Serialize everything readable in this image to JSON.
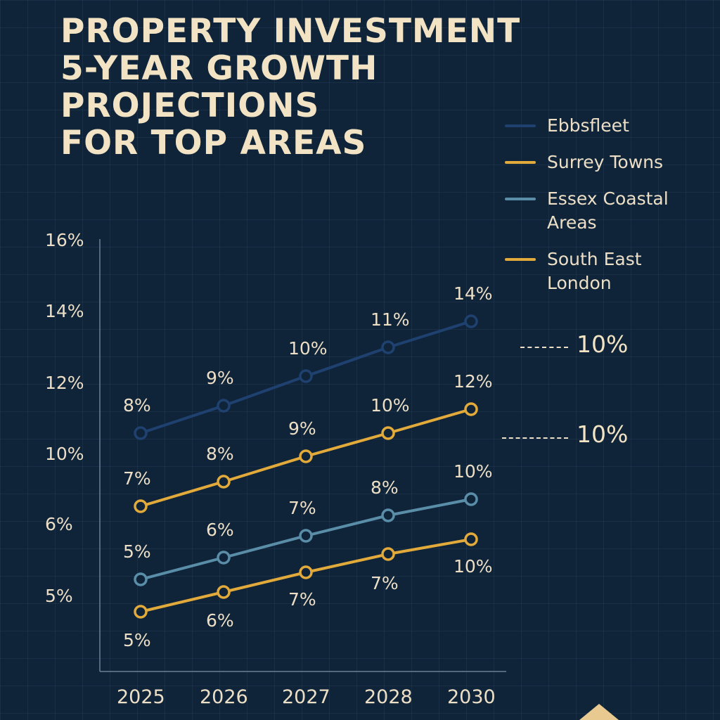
{
  "chart_data": {
    "type": "line",
    "title": [
      "PROPERTY INVESTMENT",
      "5-YEAR GROWTH",
      "PROJECTIONS",
      "FOR TOP AREAS"
    ],
    "categories": [
      "2025",
      "2026",
      "2027",
      "2028",
      "2030"
    ],
    "y_tick_labels": [
      "16%",
      "14%",
      "12%",
      "10%",
      "6%",
      "5%"
    ],
    "grid": true,
    "legend_placement": "top-right",
    "series": [
      {
        "name": "Ebbsfleet",
        "color": "#1f4170",
        "values": [
          "8%",
          "9%",
          "10%",
          "11%",
          "14%"
        ]
      },
      {
        "name": "Surrey Towns",
        "color": "#e2aa3a",
        "values": [
          "7%",
          "8%",
          "9%",
          "10%",
          "12%"
        ]
      },
      {
        "name": "Essex Coastal Areas",
        "color": "#5a8ea8",
        "values": [
          "5%",
          "6%",
          "7%",
          "8%",
          "10%"
        ]
      },
      {
        "name": "South East London",
        "color": "#e2aa3a",
        "values": [
          "5%",
          "6%",
          "7%",
          "7%",
          "10%"
        ]
      }
    ],
    "annotations": [
      "10%",
      "10%"
    ]
  }
}
